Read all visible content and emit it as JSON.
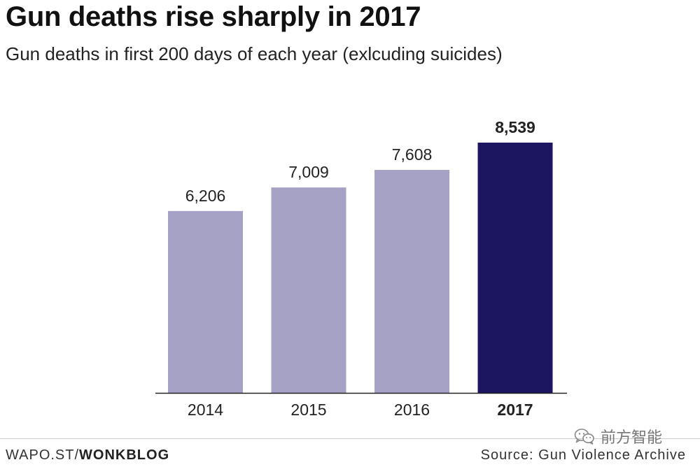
{
  "header": {
    "title": "Gun deaths rise sharply in 2017",
    "subtitle": "Gun deaths in first 200 days of each year (exlcuding suicides)"
  },
  "chart_data": {
    "type": "bar",
    "title": "Gun deaths rise sharply in 2017",
    "subtitle": "Gun deaths in first 200 days of each year (exlcuding suicides)",
    "categories": [
      "2014",
      "2015",
      "2016",
      "2017"
    ],
    "values": [
      6206,
      7009,
      7608,
      8539
    ],
    "value_labels": [
      "6,206",
      "7,009",
      "7,608",
      "8,539"
    ],
    "highlight_index": 3,
    "bar_colors": [
      "#a6a2c5",
      "#a6a2c5",
      "#a6a2c5",
      "#1c1660"
    ],
    "ylim": [
      0,
      8539
    ],
    "grid": false,
    "xlabel": "",
    "ylabel": ""
  },
  "footer": {
    "left_prefix": "WAPO.ST/",
    "left_brand": "WONKBLOG",
    "source": "Source: Gun Violence Archive"
  },
  "watermark": {
    "text": "前方智能",
    "icon": "wechat-logo-icon"
  },
  "colors": {
    "bar_default": "#a6a2c5",
    "bar_highlight": "#1c1660",
    "axis": "#222222",
    "text": "#111111"
  }
}
